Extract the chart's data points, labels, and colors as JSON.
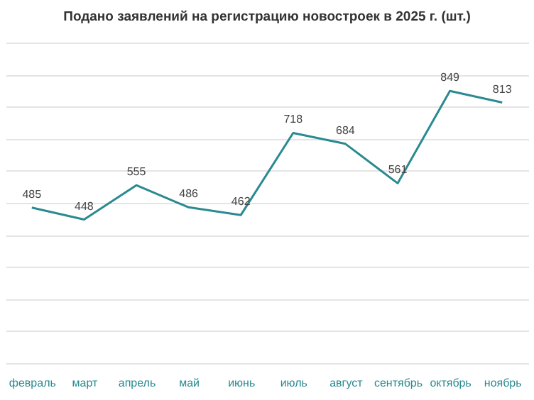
{
  "chart_data": {
    "type": "line",
    "title": "Подано заявлений на регистрацию новостроек в 2025 г. (шт.)",
    "categories": [
      "февраль",
      "март",
      "апрель",
      "май",
      "июнь",
      "июль",
      "август",
      "сентябрь",
      "октябрь",
      "ноябрь"
    ],
    "series": [
      {
        "color": "#2a8a90",
        "values": [
          485,
          448,
          555,
          486,
          462,
          718,
          684,
          561,
          849,
          813
        ]
      }
    ],
    "ylim": [
      0,
      1000
    ],
    "yticks": [
      {
        "value": 0,
        "label": null
      },
      {
        "value": 100,
        "label": null
      },
      {
        "value": 200,
        "label": null
      },
      {
        "value": 300,
        "label": null
      },
      {
        "value": 400,
        "label": null
      },
      {
        "value": 500,
        "label": null
      },
      {
        "value": 600,
        "label": null
      },
      {
        "value": 700,
        "label": null
      },
      {
        "value": 800,
        "label": null
      },
      {
        "value": 900,
        "label": null
      },
      {
        "value": 1000,
        "label": null
      }
    ],
    "grid": "y",
    "tick_labels": "x",
    "data_labels": true,
    "marker": "none",
    "line_style": "solid"
  }
}
